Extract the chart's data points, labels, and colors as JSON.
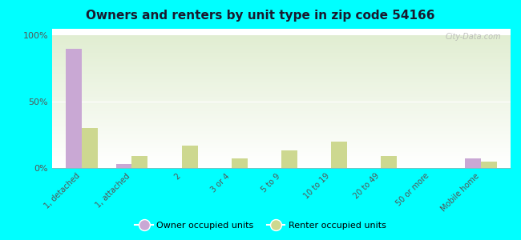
{
  "title": "Owners and renters by unit type in zip code 54166",
  "categories": [
    "1, detached",
    "1, attached",
    "2",
    "3 or 4",
    "5 to 9",
    "10 to 19",
    "20 to 49",
    "50 or more",
    "Mobile home"
  ],
  "owner_values": [
    90,
    3,
    0,
    0,
    0,
    0,
    0,
    0,
    7
  ],
  "renter_values": [
    30,
    9,
    17,
    7,
    13,
    20,
    9,
    0,
    5
  ],
  "owner_color": "#c9a8d4",
  "renter_color": "#cdd890",
  "background_color": "#00ffff",
  "ylabel_ticks": [
    "0%",
    "50%",
    "100%"
  ],
  "ytick_vals": [
    0,
    50,
    100
  ],
  "ylim": [
    0,
    105
  ],
  "watermark": "City-Data.com",
  "legend_owner": "Owner occupied units",
  "legend_renter": "Renter occupied units",
  "title_color": "#1a1a2e",
  "tick_color": "#555555"
}
